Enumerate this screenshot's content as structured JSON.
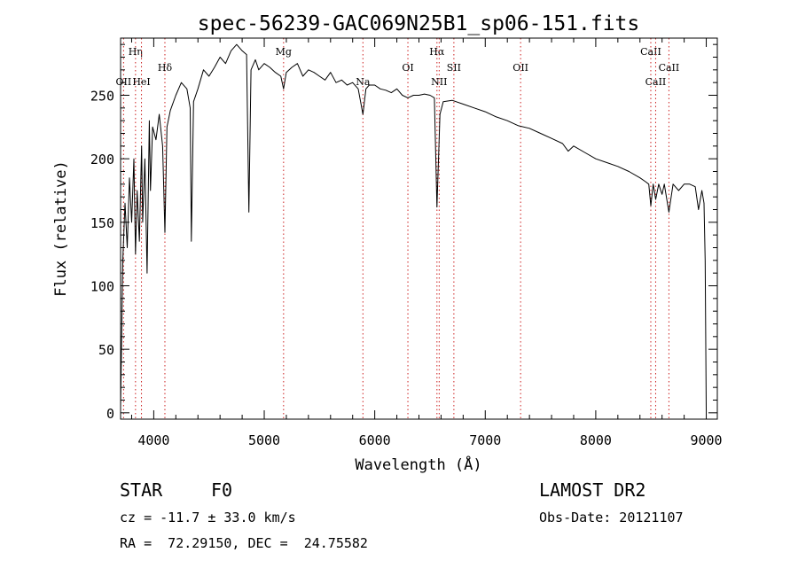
{
  "chart_data": {
    "type": "line",
    "title": "spec-56239-GAC069N25B1_sp06-151.fits",
    "xlabel": "Wavelength (Å)",
    "ylabel": "Flux (relative)",
    "xlim": [
      3700,
      9100
    ],
    "ylim": [
      -5,
      295
    ],
    "x_ticks": [
      4000,
      5000,
      6000,
      7000,
      8000,
      9000
    ],
    "y_ticks": [
      0,
      50,
      100,
      150,
      200,
      250
    ],
    "grid": false,
    "series": [
      {
        "x": [
          3700,
          3720,
          3740,
          3760,
          3780,
          3800,
          3820,
          3835,
          3850,
          3870,
          3890,
          3900,
          3920,
          3940,
          3960,
          3970,
          3990,
          4020,
          4050,
          4080,
          4101,
          4120,
          4150,
          4200,
          4250,
          4300,
          4330,
          4340,
          4360,
          4400,
          4450,
          4500,
          4550,
          4600,
          4650,
          4700,
          4750,
          4800,
          4840,
          4861,
          4880,
          4920,
          4950,
          5000,
          5050,
          5100,
          5150,
          5175,
          5200,
          5250,
          5300,
          5350,
          5400,
          5450,
          5500,
          5550,
          5600,
          5650,
          5700,
          5750,
          5800,
          5850,
          5893,
          5920,
          5950,
          6000,
          6050,
          6100,
          6150,
          6200,
          6250,
          6300,
          6350,
          6400,
          6450,
          6500,
          6540,
          6563,
          6590,
          6620,
          6700,
          6800,
          6900,
          7000,
          7100,
          7200,
          7300,
          7400,
          7500,
          7600,
          7700,
          7750,
          7800,
          7900,
          8000,
          8100,
          8200,
          8300,
          8400,
          8450,
          8480,
          8498,
          8520,
          8542,
          8570,
          8600,
          8620,
          8662,
          8700,
          8750,
          8800,
          8850,
          8900,
          8930,
          8960,
          8980,
          8990,
          9000
        ],
        "y": [
          5,
          120,
          165,
          130,
          185,
          150,
          200,
          125,
          175,
          135,
          210,
          150,
          200,
          110,
          230,
          175,
          225,
          215,
          235,
          210,
          142,
          225,
          238,
          250,
          260,
          255,
          240,
          135,
          245,
          255,
          270,
          265,
          272,
          280,
          275,
          285,
          290,
          285,
          282,
          158,
          270,
          278,
          270,
          275,
          272,
          268,
          265,
          255,
          268,
          272,
          275,
          265,
          270,
          268,
          265,
          262,
          268,
          260,
          262,
          258,
          260,
          255,
          235,
          255,
          258,
          258,
          255,
          254,
          252,
          255,
          250,
          248,
          250,
          250,
          251,
          250,
          248,
          162,
          235,
          245,
          246,
          243,
          240,
          237,
          233,
          230,
          226,
          224,
          220,
          216,
          212,
          206,
          210,
          205,
          200,
          197,
          194,
          190,
          185,
          182,
          180,
          163,
          180,
          168,
          180,
          172,
          180,
          158,
          180,
          175,
          180,
          180,
          178,
          160,
          175,
          165,
          120,
          2
        ]
      }
    ],
    "line_markers": [
      {
        "label": "Hη",
        "x": 3835,
        "row": 1
      },
      {
        "label": "OII",
        "x": 3727,
        "row": 3
      },
      {
        "label": "HeI",
        "x": 3889,
        "row": 3
      },
      {
        "label": "Hδ",
        "x": 4101,
        "row": 2
      },
      {
        "label": "Mg",
        "x": 5175,
        "row": 1
      },
      {
        "label": "Na",
        "x": 5893,
        "row": 3
      },
      {
        "label": "OI",
        "x": 6300,
        "row": 2
      },
      {
        "label": "Hα",
        "x": 6563,
        "row": 1
      },
      {
        "label": "NII",
        "x": 6583,
        "row": 3
      },
      {
        "label": "SII",
        "x": 6716,
        "row": 2
      },
      {
        "label": "OII",
        "x": 7320,
        "row": 2
      },
      {
        "label": "CaII",
        "x": 8498,
        "row": 1
      },
      {
        "label": "CaII",
        "x": 8542,
        "row": 3
      },
      {
        "label": "CaII",
        "x": 8662,
        "row": 2
      }
    ]
  },
  "footer": {
    "object_class": "STAR",
    "subclass": "F0",
    "survey": "LAMOST DR2",
    "cz": "cz = -11.7 ± 33.0 km/s",
    "obs_date": "Obs-Date: 20121107",
    "coords": "RA =  72.29150, DEC =  24.75582"
  },
  "colors": {
    "line": "#000000",
    "marker": "#cc2020",
    "axis": "#000000"
  }
}
